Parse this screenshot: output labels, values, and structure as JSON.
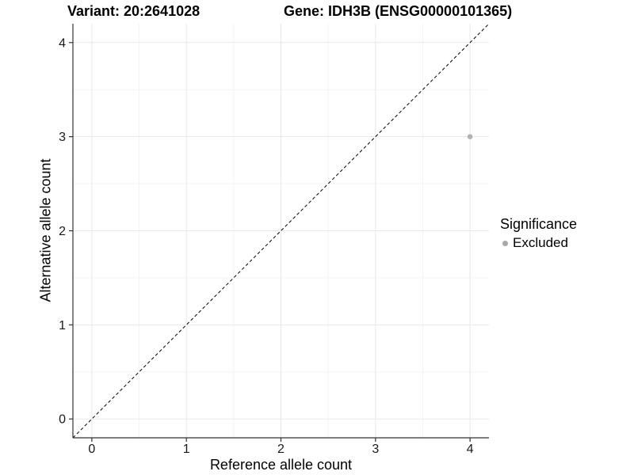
{
  "header": {
    "variant_title": "Variant: 20:2641028",
    "gene_title": "Gene: IDH3B (ENSG00000101365)"
  },
  "axes": {
    "x_label": "Reference allele count",
    "y_label": "Alternative allele count"
  },
  "legend": {
    "title": "Significance",
    "items": [
      {
        "label": "Excluded",
        "color": "#a9a9a9"
      }
    ]
  },
  "colors": {
    "point": "#b3b3b3",
    "major_grid": "#e8e8e8",
    "minor_grid": "#f3f3f3",
    "axis": "#333333",
    "dashed_line": "#000000",
    "tick_text": "#1a1a1a"
  },
  "chart_data": {
    "type": "scatter",
    "title": "Variant: 20:2641028    Gene: IDH3B (ENSG00000101365)",
    "xlabel": "Reference allele count",
    "ylabel": "Alternative allele count",
    "xlim": [
      -0.2,
      4.2
    ],
    "ylim": [
      -0.2,
      4.2
    ],
    "xticks": [
      0,
      1,
      2,
      3,
      4
    ],
    "yticks": [
      0,
      1,
      2,
      3,
      4
    ],
    "minor_xticks": [
      0.5,
      1.5,
      2.5,
      3.5
    ],
    "minor_yticks": [
      0.5,
      1.5,
      2.5,
      3.5
    ],
    "grid": "major and minor, light gray on white",
    "identity_line": {
      "style": "dashed",
      "color": "#000000",
      "from": [
        -0.2,
        -0.2
      ],
      "to": [
        4.2,
        4.2
      ]
    },
    "series": [
      {
        "name": "Excluded",
        "color": "#b3b3b3",
        "points": [
          {
            "x": 4,
            "y": 3
          }
        ]
      }
    ],
    "legend": {
      "title": "Significance",
      "position": "right",
      "entries": [
        "Excluded"
      ]
    }
  }
}
